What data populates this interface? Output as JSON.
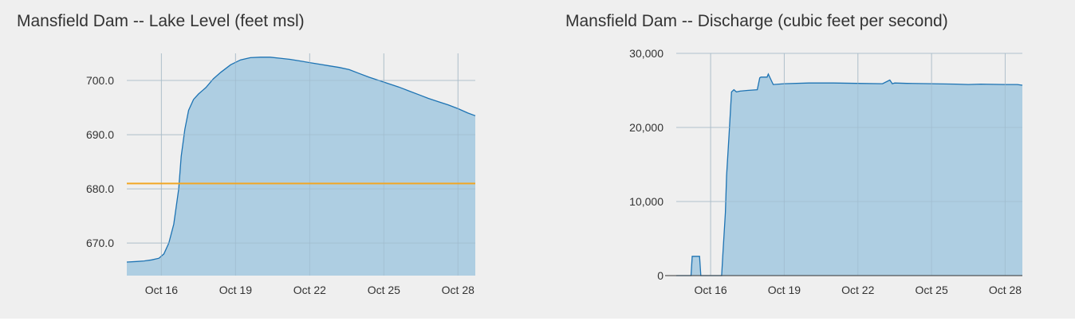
{
  "charts_meta": {
    "area_fill": "#aacbe0",
    "line_color": "#1d73b3",
    "grid_color": "#cfcfcf",
    "threshold_color": "#f2a623"
  },
  "chart_data": [
    {
      "type": "area",
      "title": "Mansfield Dam -- Lake Level (feet msl)",
      "xlabel": "",
      "ylabel": "",
      "x_ticks": [
        "Oct 16",
        "Oct 19",
        "Oct 22",
        "Oct 25",
        "Oct 28"
      ],
      "x_tick_days": [
        16,
        19,
        22,
        25,
        28
      ],
      "xlim": [
        14.6,
        28.7
      ],
      "y_ticks": [
        "670.0",
        "680.0",
        "690.0",
        "700.0"
      ],
      "y_tick_values": [
        670,
        680,
        690,
        700
      ],
      "ylim": [
        664,
        705
      ],
      "grid": true,
      "threshold": 681,
      "series": [
        {
          "x": [
            14.6,
            15.0,
            15.3,
            15.6,
            15.9,
            16.1,
            16.3,
            16.5,
            16.7,
            16.8,
            16.95,
            17.1,
            17.3,
            17.5,
            17.8,
            18.1,
            18.4,
            18.8,
            19.2,
            19.6,
            20.0,
            20.4,
            20.8,
            21.2,
            21.6,
            22.0,
            22.4,
            22.8,
            23.2,
            23.6,
            24.0,
            24.4,
            24.8,
            25.2,
            25.6,
            26.0,
            26.4,
            26.8,
            27.2,
            27.6,
            28.0,
            28.4,
            28.7
          ],
          "y": [
            666.5,
            666.6,
            666.7,
            666.9,
            667.2,
            668.0,
            670.0,
            673.5,
            680.0,
            686.0,
            691.0,
            694.5,
            696.5,
            697.5,
            698.7,
            700.3,
            701.5,
            702.9,
            703.8,
            704.2,
            704.3,
            704.3,
            704.1,
            703.9,
            703.6,
            703.3,
            703.0,
            702.7,
            702.4,
            702.0,
            701.3,
            700.6,
            700.0,
            699.4,
            698.8,
            698.1,
            697.4,
            696.7,
            696.1,
            695.5,
            694.8,
            694.0,
            693.5
          ]
        }
      ]
    },
    {
      "type": "area",
      "title": "Mansfield Dam -- Discharge (cubic feet per second)",
      "xlabel": "",
      "ylabel": "",
      "x_ticks": [
        "Oct 16",
        "Oct 19",
        "Oct 22",
        "Oct 25",
        "Oct 28"
      ],
      "x_tick_days": [
        16,
        19,
        22,
        25,
        28
      ],
      "xlim": [
        14.6,
        28.7
      ],
      "y_ticks": [
        "0",
        "10,000",
        "20,000",
        "30,000"
      ],
      "y_tick_values": [
        0,
        10000,
        20000,
        30000
      ],
      "ylim": [
        0,
        30000
      ],
      "grid": true,
      "series": [
        {
          "x": [
            14.6,
            15.2,
            15.25,
            15.55,
            15.6,
            16.45,
            16.5,
            16.6,
            16.65,
            16.75,
            16.85,
            16.95,
            17.05,
            17.2,
            17.5,
            17.9,
            18.0,
            18.05,
            18.3,
            18.35,
            18.55,
            19.0,
            20.0,
            21.0,
            22.0,
            23.0,
            23.3,
            23.4,
            23.5,
            24.0,
            25.0,
            26.0,
            26.5,
            27.0,
            28.0,
            28.5,
            28.7
          ],
          "y": [
            0,
            0,
            2600,
            2600,
            0,
            0,
            3000,
            8500,
            13500,
            19000,
            24800,
            25100,
            24800,
            24900,
            25000,
            25100,
            26700,
            26800,
            26800,
            27200,
            25800,
            25900,
            26000,
            26000,
            25950,
            25900,
            26400,
            25900,
            26000,
            25950,
            25900,
            25850,
            25800,
            25850,
            25800,
            25800,
            25700
          ]
        }
      ]
    }
  ]
}
